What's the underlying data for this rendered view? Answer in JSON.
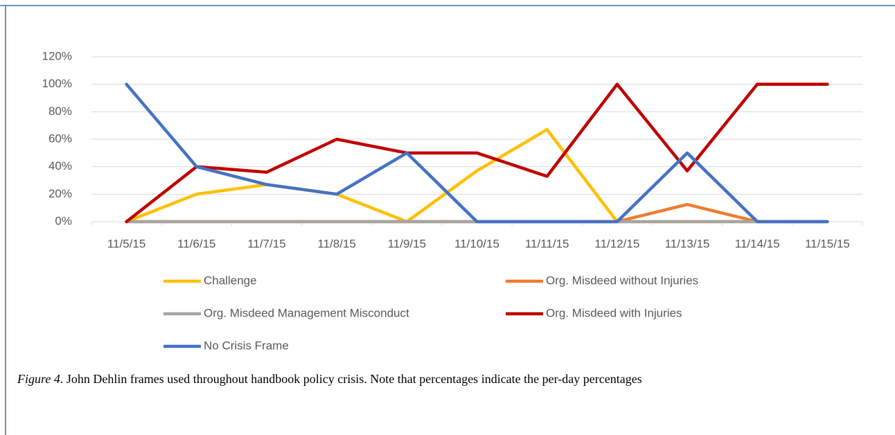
{
  "chart_data": {
    "type": "line",
    "categories": [
      "11/5/15",
      "11/6/15",
      "11/7/15",
      "11/8/15",
      "11/9/15",
      "11/10/15",
      "11/11/15",
      "11/12/15",
      "11/13/15",
      "11/14/15",
      "11/15/15"
    ],
    "series": [
      {
        "name": "Challenge",
        "color": "#ffc000",
        "values": [
          0,
          20,
          27,
          20,
          0,
          37,
          67,
          0,
          0,
          0,
          0
        ]
      },
      {
        "name": "Org. Misdeed without Injuries",
        "color": "#ed7d31",
        "values": [
          0,
          0,
          0,
          0,
          0,
          0,
          0,
          0,
          12.5,
          0,
          0
        ]
      },
      {
        "name": "Org. Misdeed Management Misconduct",
        "color": "#a5a5a5",
        "values": [
          0,
          0,
          0,
          0,
          0,
          0,
          0,
          0,
          0,
          0,
          0
        ]
      },
      {
        "name": "Org. Misdeed with Injuries",
        "color": "#c00000",
        "values": [
          0,
          40,
          36,
          60,
          50,
          50,
          33,
          100,
          37,
          100,
          100
        ]
      },
      {
        "name": "No Crisis Frame",
        "color": "#4472c4",
        "values": [
          100,
          40,
          27,
          20,
          50,
          0,
          0,
          0,
          50,
          0,
          0
        ]
      }
    ],
    "ylim": [
      0,
      120
    ],
    "yticks": [
      {
        "value": 0,
        "label": "0%"
      },
      {
        "value": 20,
        "label": "20%"
      },
      {
        "value": 40,
        "label": "40%"
      },
      {
        "value": 60,
        "label": "60%"
      },
      {
        "value": 80,
        "label": "80%"
      },
      {
        "value": 100,
        "label": "100%"
      },
      {
        "value": 120,
        "label": "120%"
      }
    ],
    "grid": true,
    "legend": "bottom"
  },
  "caption": {
    "label": "Figure 4",
    "text": ". John Dehlin frames used throughout handbook policy crisis. Note that percentages indicate the per-day percentages"
  }
}
